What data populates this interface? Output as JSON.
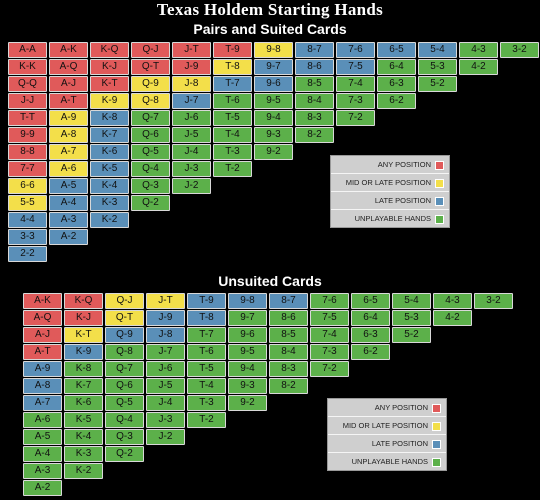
{
  "header": {
    "title": "Texas Holdem Starting Hands",
    "section1_title": "Pairs and Suited Cards",
    "section2_title": "Unsuited Cards"
  },
  "colors": {
    "r": "#e05a5a",
    "y": "#f3df4a",
    "b": "#5a8fb8",
    "g": "#5cb04a"
  },
  "legend": [
    {
      "label": "ANY POSITION",
      "color": "r"
    },
    {
      "label": "MID OR LATE POSITION",
      "color": "y"
    },
    {
      "label": "LATE POSITION",
      "color": "b"
    },
    {
      "label": "UNPLAYABLE HANDS",
      "color": "g"
    }
  ],
  "pairs_suited": [
    [
      [
        "A-A",
        "r"
      ],
      [
        "K-K",
        "r"
      ],
      [
        "Q-Q",
        "r"
      ],
      [
        "J-J",
        "r"
      ],
      [
        "T-T",
        "r"
      ],
      [
        "9-9",
        "r"
      ],
      [
        "8-8",
        "r"
      ],
      [
        "7-7",
        "r"
      ],
      [
        "6-6",
        "y"
      ],
      [
        "5-5",
        "y"
      ],
      [
        "4-4",
        "b"
      ],
      [
        "3-3",
        "b"
      ],
      [
        "2-2",
        "b"
      ]
    ],
    [
      [
        "A-K",
        "r"
      ],
      [
        "A-Q",
        "r"
      ],
      [
        "A-J",
        "r"
      ],
      [
        "A-T",
        "r"
      ],
      [
        "A-9",
        "y"
      ],
      [
        "A-8",
        "y"
      ],
      [
        "A-7",
        "y"
      ],
      [
        "A-6",
        "y"
      ],
      [
        "A-5",
        "b"
      ],
      [
        "A-4",
        "b"
      ],
      [
        "A-3",
        "b"
      ],
      [
        "A-2",
        "b"
      ]
    ],
    [
      [
        "K-Q",
        "r"
      ],
      [
        "K-J",
        "r"
      ],
      [
        "K-T",
        "r"
      ],
      [
        "K-9",
        "y"
      ],
      [
        "K-8",
        "b"
      ],
      [
        "K-7",
        "b"
      ],
      [
        "K-6",
        "b"
      ],
      [
        "K-5",
        "b"
      ],
      [
        "K-4",
        "b"
      ],
      [
        "K-3",
        "b"
      ],
      [
        "K-2",
        "b"
      ]
    ],
    [
      [
        "Q-J",
        "r"
      ],
      [
        "Q-T",
        "r"
      ],
      [
        "Q-9",
        "y"
      ],
      [
        "Q-8",
        "y"
      ],
      [
        "Q-7",
        "g"
      ],
      [
        "Q-6",
        "g"
      ],
      [
        "Q-5",
        "g"
      ],
      [
        "Q-4",
        "g"
      ],
      [
        "Q-3",
        "g"
      ],
      [
        "Q-2",
        "g"
      ]
    ],
    [
      [
        "J-T",
        "r"
      ],
      [
        "J-9",
        "r"
      ],
      [
        "J-8",
        "y"
      ],
      [
        "J-7",
        "b"
      ],
      [
        "J-6",
        "g"
      ],
      [
        "J-5",
        "g"
      ],
      [
        "J-4",
        "g"
      ],
      [
        "J-3",
        "g"
      ],
      [
        "J-2",
        "g"
      ]
    ],
    [
      [
        "T-9",
        "r"
      ],
      [
        "T-8",
        "y"
      ],
      [
        "T-7",
        "b"
      ],
      [
        "T-6",
        "g"
      ],
      [
        "T-5",
        "g"
      ],
      [
        "T-4",
        "g"
      ],
      [
        "T-3",
        "g"
      ],
      [
        "T-2",
        "g"
      ]
    ],
    [
      [
        "9-8",
        "y"
      ],
      [
        "9-7",
        "b"
      ],
      [
        "9-6",
        "b"
      ],
      [
        "9-5",
        "g"
      ],
      [
        "9-4",
        "g"
      ],
      [
        "9-3",
        "g"
      ],
      [
        "9-2",
        "g"
      ]
    ],
    [
      [
        "8-7",
        "b"
      ],
      [
        "8-6",
        "b"
      ],
      [
        "8-5",
        "g"
      ],
      [
        "8-4",
        "g"
      ],
      [
        "8-3",
        "g"
      ],
      [
        "8-2",
        "g"
      ]
    ],
    [
      [
        "7-6",
        "b"
      ],
      [
        "7-5",
        "b"
      ],
      [
        "7-4",
        "g"
      ],
      [
        "7-3",
        "g"
      ],
      [
        "7-2",
        "g"
      ]
    ],
    [
      [
        "6-5",
        "b"
      ],
      [
        "6-4",
        "g"
      ],
      [
        "6-3",
        "g"
      ],
      [
        "6-2",
        "g"
      ]
    ],
    [
      [
        "5-4",
        "b"
      ],
      [
        "5-3",
        "g"
      ],
      [
        "5-2",
        "g"
      ]
    ],
    [
      [
        "4-3",
        "g"
      ],
      [
        "4-2",
        "g"
      ]
    ],
    [
      [
        "3-2",
        "g"
      ]
    ]
  ],
  "unsuited": [
    [
      [
        "A-K",
        "r"
      ],
      [
        "A-Q",
        "r"
      ],
      [
        "A-J",
        "r"
      ],
      [
        "A-T",
        "r"
      ],
      [
        "A-9",
        "b"
      ],
      [
        "A-8",
        "b"
      ],
      [
        "A-7",
        "b"
      ],
      [
        "A-6",
        "g"
      ],
      [
        "A-5",
        "g"
      ],
      [
        "A-4",
        "g"
      ],
      [
        "A-3",
        "g"
      ],
      [
        "A-2",
        "g"
      ]
    ],
    [
      [
        "K-Q",
        "r"
      ],
      [
        "K-J",
        "r"
      ],
      [
        "K-T",
        "y"
      ],
      [
        "K-9",
        "b"
      ],
      [
        "K-8",
        "g"
      ],
      [
        "K-7",
        "g"
      ],
      [
        "K-6",
        "g"
      ],
      [
        "K-5",
        "g"
      ],
      [
        "K-4",
        "g"
      ],
      [
        "K-3",
        "g"
      ],
      [
        "K-2",
        "g"
      ]
    ],
    [
      [
        "Q-J",
        "y"
      ],
      [
        "Q-T",
        "y"
      ],
      [
        "Q-9",
        "b"
      ],
      [
        "Q-8",
        "g"
      ],
      [
        "Q-7",
        "g"
      ],
      [
        "Q-6",
        "g"
      ],
      [
        "Q-5",
        "g"
      ],
      [
        "Q-4",
        "g"
      ],
      [
        "Q-3",
        "g"
      ],
      [
        "Q-2",
        "g"
      ]
    ],
    [
      [
        "J-T",
        "y"
      ],
      [
        "J-9",
        "b"
      ],
      [
        "J-8",
        "b"
      ],
      [
        "J-7",
        "g"
      ],
      [
        "J-6",
        "g"
      ],
      [
        "J-5",
        "g"
      ],
      [
        "J-4",
        "g"
      ],
      [
        "J-3",
        "g"
      ],
      [
        "J-2",
        "g"
      ]
    ],
    [
      [
        "T-9",
        "b"
      ],
      [
        "T-8",
        "b"
      ],
      [
        "T-7",
        "g"
      ],
      [
        "T-6",
        "g"
      ],
      [
        "T-5",
        "g"
      ],
      [
        "T-4",
        "g"
      ],
      [
        "T-3",
        "g"
      ],
      [
        "T-2",
        "g"
      ]
    ],
    [
      [
        "9-8",
        "b"
      ],
      [
        "9-7",
        "g"
      ],
      [
        "9-6",
        "g"
      ],
      [
        "9-5",
        "g"
      ],
      [
        "9-4",
        "g"
      ],
      [
        "9-3",
        "g"
      ],
      [
        "9-2",
        "g"
      ]
    ],
    [
      [
        "8-7",
        "b"
      ],
      [
        "8-6",
        "g"
      ],
      [
        "8-5",
        "g"
      ],
      [
        "8-4",
        "g"
      ],
      [
        "8-3",
        "g"
      ],
      [
        "8-2",
        "g"
      ]
    ],
    [
      [
        "7-6",
        "g"
      ],
      [
        "7-5",
        "g"
      ],
      [
        "7-4",
        "g"
      ],
      [
        "7-3",
        "g"
      ],
      [
        "7-2",
        "g"
      ]
    ],
    [
      [
        "6-5",
        "g"
      ],
      [
        "6-4",
        "g"
      ],
      [
        "6-3",
        "g"
      ],
      [
        "6-2",
        "g"
      ]
    ],
    [
      [
        "5-4",
        "g"
      ],
      [
        "5-3",
        "g"
      ],
      [
        "5-2",
        "g"
      ]
    ],
    [
      [
        "4-3",
        "g"
      ],
      [
        "4-2",
        "g"
      ]
    ],
    [
      [
        "3-2",
        "g"
      ]
    ]
  ]
}
